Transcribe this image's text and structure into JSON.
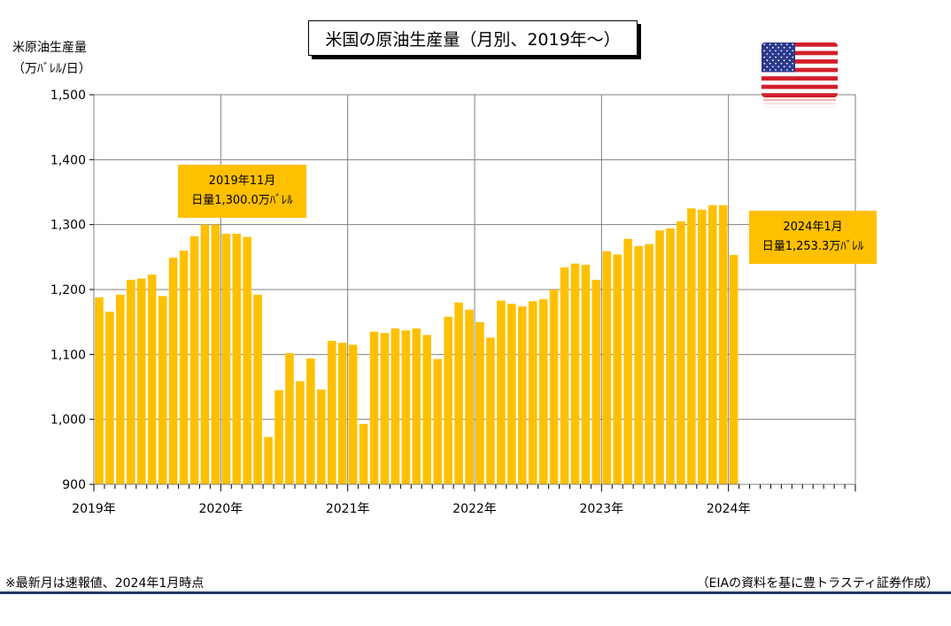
{
  "title": "米国の原油生産量（月別、2019年～）",
  "y_axis_label_line1": "米原油生産量",
  "y_axis_label_line2": "（万ﾊﾞﾚﾙ/日）",
  "callouts": [
    {
      "line1": "2019年11月",
      "line2": "日量1,300.0万ﾊﾞﾚﾙ"
    },
    {
      "line1": "2024年1月",
      "line2": "日量1,253.3万ﾊﾞﾚﾙ"
    }
  ],
  "footnote": "※最新月は速報値、2024年1月時点",
  "source": "（EIAの資料を基に豊トラスティ証券作成）",
  "colors": {
    "bar": "#ffc000",
    "grid": "#808080",
    "rule": "#1f3864"
  },
  "icons": {
    "flag": "us-flag-icon"
  },
  "chart_data": {
    "type": "bar",
    "ylim": [
      900,
      1500
    ],
    "y_ticks": [
      900,
      1000,
      1100,
      1200,
      1300,
      1400,
      1500
    ],
    "y_tick_labels": [
      "900",
      "1,000",
      "1,100",
      "1,200",
      "1,300",
      "1,400",
      "1,500"
    ],
    "x_labels": [
      "2019年",
      "2020年",
      "2021年",
      "2022年",
      "2023年",
      "2024年"
    ],
    "x_range_months": 72,
    "grid": true,
    "values": [
      1188,
      1166,
      1192,
      1215,
      1217,
      1223,
      1190,
      1249,
      1260,
      1282,
      1300,
      1300,
      1286,
      1286,
      1281,
      1192,
      973,
      1045,
      1102,
      1059,
      1094,
      1046,
      1121,
      1118,
      1115,
      993,
      1135,
      1133,
      1140,
      1137,
      1140,
      1130,
      1093,
      1158,
      1180,
      1169,
      1150,
      1126,
      1183,
      1178,
      1174,
      1182,
      1185,
      1200,
      1234,
      1240,
      1238,
      1215,
      1259,
      1254,
      1278,
      1267,
      1270,
      1291,
      1294,
      1305,
      1325,
      1323,
      1330,
      1330,
      1253.3
    ]
  }
}
